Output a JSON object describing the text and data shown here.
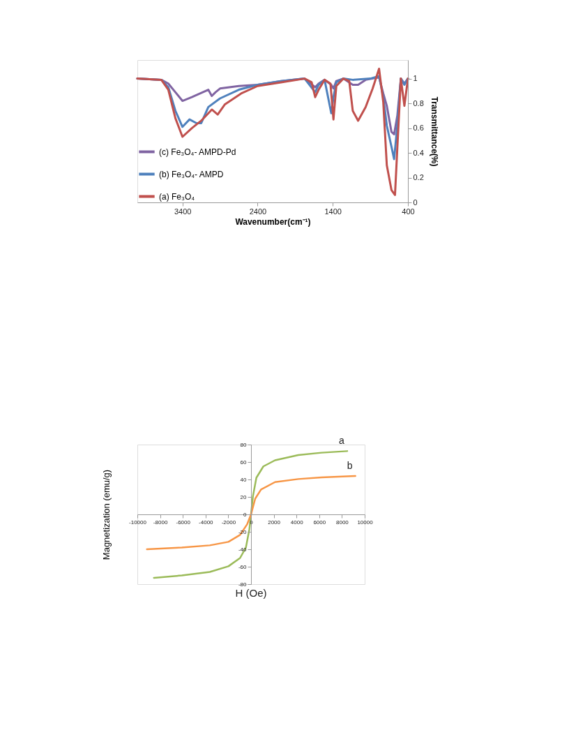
{
  "chart_data": [
    {
      "type": "line",
      "xlabel": "Wavenumber(cm⁻¹)",
      "ylabel": "Transmittance(%)",
      "xlim": [
        4000,
        400
      ],
      "xticks": [
        3400,
        2400,
        1400,
        400
      ],
      "ylim": [
        0,
        1.15
      ],
      "yticks": [
        0,
        0.2,
        0.4,
        0.6,
        0.8,
        1
      ],
      "grid": false,
      "legend": "bottom left",
      "line_style": "solid",
      "marker": "none",
      "series": [
        {
          "name": "(c) Fe₃O₄- AMPD-Pd",
          "color": "#8064a2",
          "x": [
            4000,
            3680,
            3588,
            3494,
            3400,
            3275,
            3056,
            3010,
            2960,
            2900,
            2650,
            2400,
            2088,
            1775,
            1634,
            1588,
            1509,
            1420,
            1391,
            1353,
            1259,
            1134,
            1063,
            963,
            784,
            728,
            681,
            619,
            584,
            541,
            494,
            447,
            400
          ],
          "values": [
            1.0,
            0.99,
            0.96,
            0.89,
            0.82,
            0.85,
            0.91,
            0.86,
            0.89,
            0.92,
            0.94,
            0.95,
            0.98,
            1.0,
            0.93,
            0.96,
            0.99,
            0.95,
            0.92,
            0.98,
            1.0,
            0.95,
            0.95,
            0.99,
            1.01,
            0.88,
            0.78,
            0.57,
            0.55,
            0.7,
            1.0,
            0.96,
            1.0
          ]
        },
        {
          "name": "(b) Fe₃O₄- AMPD",
          "color": "#4f81bd",
          "x": [
            4000,
            3680,
            3588,
            3494,
            3400,
            3306,
            3213,
            3150,
            3056,
            2900,
            2650,
            2400,
            2088,
            1775,
            1634,
            1588,
            1509,
            1420,
            1391,
            1353,
            1259,
            1134,
            900,
            784,
            728,
            681,
            619,
            584,
            541,
            494,
            447,
            400
          ],
          "values": [
            1.0,
            0.99,
            0.93,
            0.74,
            0.61,
            0.67,
            0.64,
            0.64,
            0.77,
            0.84,
            0.91,
            0.95,
            0.98,
            1.0,
            0.89,
            0.95,
            0.99,
            0.72,
            0.85,
            0.97,
            1.0,
            0.99,
            1.0,
            1.02,
            0.85,
            0.62,
            0.45,
            0.35,
            0.62,
            1.0,
            0.95,
            1.0
          ]
        },
        {
          "name": "(a) Fe₃O₄",
          "color": "#c0504d",
          "x": [
            4000,
            3681,
            3588,
            3494,
            3400,
            3275,
            3150,
            3009,
            2931,
            2838,
            2619,
            2400,
            2088,
            1775,
            1681,
            1634,
            1588,
            1509,
            1431,
            1391,
            1353,
            1259,
            1181,
            1134,
            1063,
            963,
            869,
            784,
            728,
            681,
            619,
            572,
            541,
            494,
            447,
            400
          ],
          "values": [
            1.0,
            0.99,
            0.91,
            0.68,
            0.53,
            0.6,
            0.66,
            0.75,
            0.71,
            0.79,
            0.88,
            0.94,
            0.97,
            1.0,
            0.97,
            0.85,
            0.91,
            0.99,
            0.96,
            0.67,
            0.94,
            1.0,
            0.98,
            0.74,
            0.66,
            0.77,
            0.92,
            1.08,
            0.81,
            0.3,
            0.1,
            0.06,
            0.44,
            1.0,
            0.78,
            1.0
          ]
        }
      ]
    },
    {
      "type": "line",
      "xlabel": "H (Oe)",
      "ylabel": "Magnetization (emu/g)",
      "xlim": [
        -10000,
        10000
      ],
      "xticks": [
        -10000,
        -8000,
        -6000,
        -4000,
        -2000,
        0,
        2000,
        4000,
        6000,
        8000,
        10000
      ],
      "ylim": [
        -80,
        80
      ],
      "yticks": [
        -80,
        -60,
        -40,
        -20,
        0,
        20,
        40,
        60,
        80
      ],
      "grid": false,
      "legend": false,
      "line_style": "solid",
      "marker": "none",
      "series": [
        {
          "name": "a",
          "color": "#9bbb59",
          "x": [
            -8545,
            -6086,
            -3627,
            -1988,
            -963,
            -451,
            -143,
            0,
            164,
            471,
            1086,
            2111,
            4160,
            6209,
            8463
          ],
          "values": [
            -72.8,
            -70,
            -66,
            -59.5,
            -50,
            -38,
            -17,
            0,
            20.5,
            42,
            55,
            62,
            68,
            70.7,
            72.5
          ]
        },
        {
          "name": "b",
          "color": "#f79646",
          "x": [
            -9160,
            -6086,
            -3627,
            -1988,
            -963,
            -348,
            0,
            369,
            881,
            2111,
            4160,
            6209,
            9180
          ],
          "values": [
            -40,
            -38,
            -35.5,
            -31.5,
            -23.5,
            -11.5,
            0,
            18,
            28.5,
            37,
            40.5,
            42.4,
            44
          ]
        }
      ]
    }
  ]
}
